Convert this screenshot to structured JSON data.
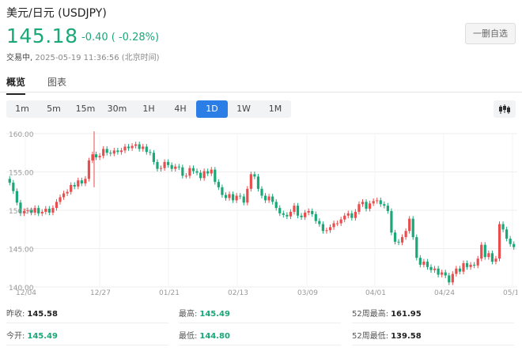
{
  "header": {
    "title": "美元/日元 (USDJPY)",
    "price": "145.18",
    "change": "-0.40 ( -0.28%)",
    "state": "交易中,",
    "timestamp": "2025-05-19 11:36:56 (北京时间)",
    "watch_button": "一删自选"
  },
  "tabs": [
    {
      "label": "概览",
      "active": true
    },
    {
      "label": "图表",
      "active": false
    }
  ],
  "periods": [
    {
      "label": "1m"
    },
    {
      "label": "5m"
    },
    {
      "label": "15m"
    },
    {
      "label": "30m"
    },
    {
      "label": "1H"
    },
    {
      "label": "4H"
    },
    {
      "label": "1D",
      "active": true
    },
    {
      "label": "1W"
    },
    {
      "label": "1M"
    }
  ],
  "icons": {
    "chart_type": "candlestick-chart-icon"
  },
  "colors": {
    "up": "#e94e4e",
    "down": "#1aa877",
    "accent": "#2a7ee6"
  },
  "stats": {
    "prev_close_label": "昨收:",
    "prev_close": "145.58",
    "open_label": "今开:",
    "open": "145.49",
    "high_label": "最高:",
    "high": "145.49",
    "low_label": "最低:",
    "low": "144.80",
    "high52_label": "52周最高:",
    "high52": "161.95",
    "low52_label": "52周最低:",
    "low52": "139.58"
  },
  "chart_data": {
    "type": "candlestick",
    "y_ticks": [
      "160.00",
      "155.00",
      "150.00",
      "145.00",
      "140.00"
    ],
    "ylim": [
      140,
      160
    ],
    "x_ticks": [
      "12/04",
      "12/27",
      "01/21",
      "02/13",
      "03/09",
      "04/01",
      "04/24",
      "05/1"
    ],
    "grid": true,
    "closes": [
      153.6,
      152.5,
      151.0,
      149.6,
      149.9,
      150.0,
      149.7,
      150.3,
      149.6,
      149.8,
      150.2,
      149.7,
      150.3,
      151.1,
      151.7,
      152.2,
      152.4,
      153.3,
      153.1,
      153.9,
      153.5,
      154.1,
      156.5,
      157.3,
      156.9,
      157.1,
      158.0,
      157.5,
      157.4,
      157.8,
      157.6,
      157.8,
      158.3,
      158.1,
      158.4,
      158.6,
      158.0,
      158.3,
      157.6,
      157.5,
      156.3,
      155.4,
      155.5,
      156.3,
      155.9,
      155.4,
      155.7,
      155.6,
      154.5,
      154.5,
      155.5,
      155.1,
      154.9,
      154.2,
      155.1,
      154.8,
      155.3,
      153.7,
      153.0,
      152.0,
      151.6,
      152.1,
      151.3,
      151.9,
      151.8,
      151.0,
      152.8,
      154.7,
      154.4,
      152.8,
      151.9,
      151.3,
      151.8,
      151.1,
      150.3,
      149.6,
      149.4,
      149.2,
      149.8,
      150.6,
      149.3,
      149.1,
      149.7,
      149.9,
      149.5,
      148.6,
      148.2,
      147.3,
      147.4,
      147.8,
      148.3,
      148.3,
      148.8,
      149.3,
      149.6,
      149.0,
      149.8,
      150.8,
      151.1,
      150.2,
      150.9,
      151.2,
      151.3,
      150.8,
      150.6,
      149.9,
      147.1,
      145.9,
      145.8,
      146.5,
      147.3,
      148.9,
      146.5,
      143.8,
      142.9,
      143.3,
      142.6,
      142.2,
      142.4,
      141.6,
      141.9,
      141.5,
      140.6,
      141.7,
      142.4,
      142.0,
      143.1,
      142.6,
      142.9,
      142.8,
      143.7,
      145.5,
      143.9,
      144.4,
      143.3,
      143.7,
      148.2,
      147.5,
      146.3,
      145.6,
      145.2
    ]
  },
  "chart_date_axis": []
}
